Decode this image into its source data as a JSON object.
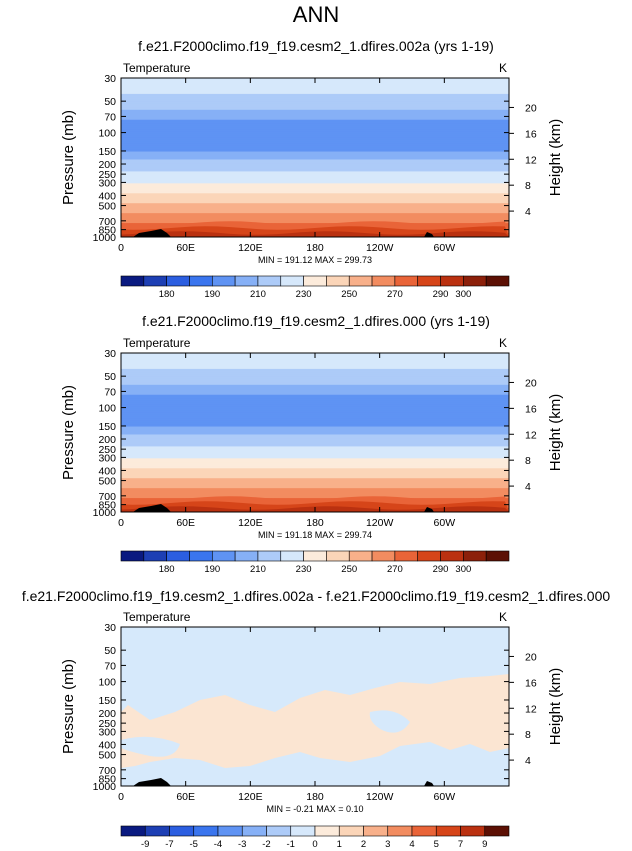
{
  "title": "ANN",
  "colors": {
    "black": "#000000",
    "diff_background": "#d6e9fb",
    "diff_warm": "#fbe5d2"
  },
  "chart_data": [
    {
      "type": "heatmap",
      "title": "f.e21.F2000climo.f19_f19.cesm2_1.dfires.002a (yrs 1-19)",
      "variable": "Temperature",
      "units": "K",
      "xlabel": "",
      "ylabel": "Pressure (mb)",
      "ylabel_right": "Height (km)",
      "x_ticks": [
        "0",
        "60E",
        "120E",
        "180",
        "120W",
        "60W"
      ],
      "y_ticks": [
        30,
        50,
        70,
        100,
        150,
        200,
        250,
        300,
        400,
        500,
        700,
        850,
        1000
      ],
      "y_scale": "log",
      "y_right_ticks": [
        4,
        8,
        12,
        16,
        20
      ],
      "grid": false,
      "stats": "MIN = 191.12  MAX = 299.73",
      "profile_pressures": [
        30,
        50,
        70,
        100,
        150,
        200,
        250,
        300,
        400,
        500,
        700,
        850,
        1000
      ],
      "profile_values": [
        228,
        216,
        206,
        200,
        205,
        213,
        222,
        230,
        243,
        253,
        268,
        277,
        286
      ],
      "colorbar": {
        "labels": [
          "180",
          "190",
          "210",
          "230",
          "250",
          "270",
          "290",
          "300"
        ],
        "colors": [
          "#0a1a80",
          "#1d3fb4",
          "#2b5ee0",
          "#3a75ee",
          "#5f93f3",
          "#86b0f6",
          "#adcbf8",
          "#d6e8fb",
          "#fcebdb",
          "#fbd5b8",
          "#f8b08a",
          "#f28c60",
          "#e96438",
          "#d64519",
          "#ba3110",
          "#8c200a",
          "#5c1004"
        ]
      }
    },
    {
      "type": "heatmap",
      "title": "f.e21.F2000climo.f19_f19.cesm2_1.dfires.000 (yrs 1-19)",
      "variable": "Temperature",
      "units": "K",
      "xlabel": "",
      "ylabel": "Pressure (mb)",
      "ylabel_right": "Height (km)",
      "x_ticks": [
        "0",
        "60E",
        "120E",
        "180",
        "120W",
        "60W"
      ],
      "y_ticks": [
        30,
        50,
        70,
        100,
        150,
        200,
        250,
        300,
        400,
        500,
        700,
        850,
        1000
      ],
      "y_scale": "log",
      "y_right_ticks": [
        4,
        8,
        12,
        16,
        20
      ],
      "grid": false,
      "stats": "MIN = 191.18  MAX = 299.74",
      "profile_pressures": [
        30,
        50,
        70,
        100,
        150,
        200,
        250,
        300,
        400,
        500,
        700,
        850,
        1000
      ],
      "profile_values": [
        228,
        216,
        206,
        200,
        205,
        213,
        222,
        230,
        243,
        253,
        268,
        277,
        286
      ],
      "colorbar": {
        "labels": [
          "180",
          "190",
          "210",
          "230",
          "250",
          "270",
          "290",
          "300"
        ],
        "colors": [
          "#0a1a80",
          "#1d3fb4",
          "#2b5ee0",
          "#3a75ee",
          "#5f93f3",
          "#86b0f6",
          "#adcbf8",
          "#d6e8fb",
          "#fcebdb",
          "#fbd5b8",
          "#f8b08a",
          "#f28c60",
          "#e96438",
          "#d64519",
          "#ba3110",
          "#8c200a",
          "#5c1004"
        ]
      }
    },
    {
      "type": "heatmap",
      "title": "f.e21.F2000climo.f19_f19.cesm2_1.dfires.002a - f.e21.F2000climo.f19_f19.cesm2_1.dfires.000",
      "variable": "Temperature",
      "units": "K",
      "xlabel": "",
      "ylabel": "Pressure (mb)",
      "ylabel_right": "Height (km)",
      "x_ticks": [
        "0",
        "60E",
        "120E",
        "180",
        "120W",
        "60W"
      ],
      "y_ticks": [
        30,
        50,
        70,
        100,
        150,
        200,
        250,
        300,
        400,
        500,
        700,
        850,
        1000
      ],
      "y_scale": "log",
      "y_right_ticks": [
        4,
        8,
        12,
        16,
        20
      ],
      "grid": false,
      "stats": "MIN = -0.21  MAX =  0.10",
      "colorbar": {
        "labels": [
          "-9",
          "-7",
          "-5",
          "-4",
          "-3",
          "-2",
          "-1",
          "0",
          "1",
          "2",
          "3",
          "4",
          "5",
          "7",
          "9"
        ],
        "colors": [
          "#0a1a80",
          "#1d3fb4",
          "#2b5ee0",
          "#3a75ee",
          "#5f93f3",
          "#86b0f6",
          "#adcbf8",
          "#d6e8fb",
          "#fcebdb",
          "#fbd5b8",
          "#f8b08a",
          "#f28c60",
          "#e96438",
          "#d64519",
          "#ba3110",
          "#5c1004"
        ]
      }
    }
  ]
}
